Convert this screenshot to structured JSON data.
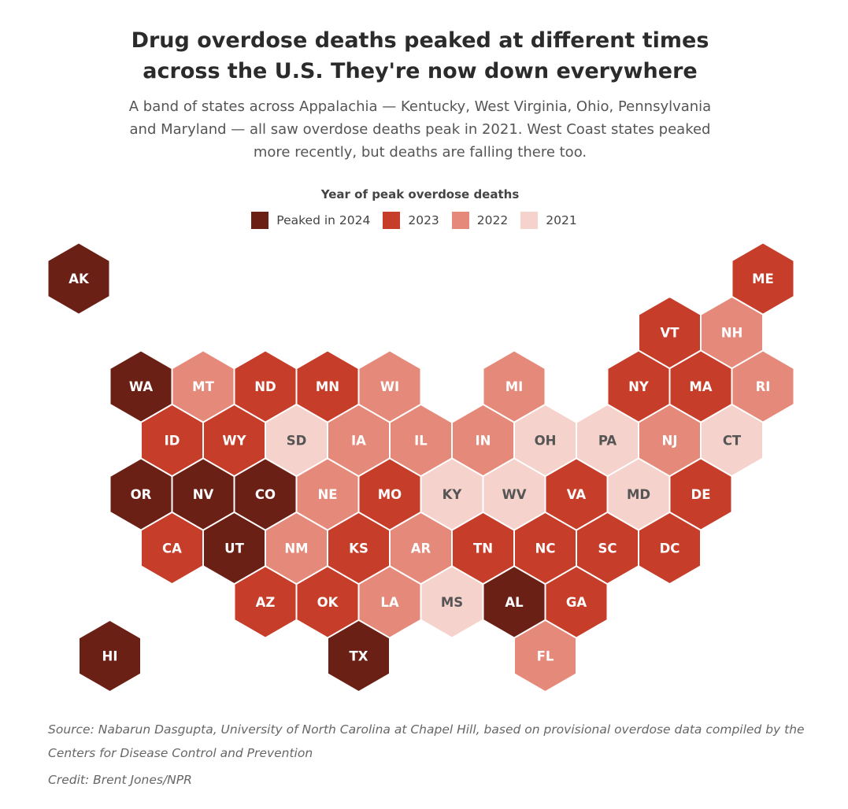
{
  "title_line1": "Drug overdose deaths peaked at different times",
  "title_line2": "across the U.S. They're now down everywhere",
  "subtitle": "A band of states across Appalachia — Kentucky, West Virginia, Ohio, Pennsylvania and Maryland — all saw overdose deaths peak in 2021. West Coast states peaked more recently, but deaths are falling there too.",
  "legend": {
    "title": "Year of peak overdose deaths",
    "items": [
      {
        "label": "Peaked in 2024",
        "year": 2024,
        "color": "#6b2016"
      },
      {
        "label": "2023",
        "year": 2023,
        "color": "#c63d2a"
      },
      {
        "label": "2022",
        "year": 2022,
        "color": "#e5897a"
      },
      {
        "label": "2021",
        "year": 2021,
        "color": "#f6d2cc"
      }
    ]
  },
  "chart_data": {
    "type": "hex-tile-map",
    "value_name": "Year of peak overdose deaths",
    "states": [
      {
        "abbr": "AK",
        "peak_year": 2024,
        "row": 0,
        "col": 0
      },
      {
        "abbr": "ME",
        "peak_year": 2023,
        "row": 0,
        "col": 11
      },
      {
        "abbr": "VT",
        "peak_year": 2023,
        "row": 1,
        "col": 9.5
      },
      {
        "abbr": "NH",
        "peak_year": 2022,
        "row": 1,
        "col": 10.5
      },
      {
        "abbr": "WA",
        "peak_year": 2024,
        "row": 2,
        "col": 1
      },
      {
        "abbr": "MT",
        "peak_year": 2022,
        "row": 2,
        "col": 2
      },
      {
        "abbr": "ND",
        "peak_year": 2023,
        "row": 2,
        "col": 3
      },
      {
        "abbr": "MN",
        "peak_year": 2023,
        "row": 2,
        "col": 4
      },
      {
        "abbr": "WI",
        "peak_year": 2022,
        "row": 2,
        "col": 5
      },
      {
        "abbr": "MI",
        "peak_year": 2022,
        "row": 2,
        "col": 7
      },
      {
        "abbr": "NY",
        "peak_year": 2023,
        "row": 2,
        "col": 9
      },
      {
        "abbr": "MA",
        "peak_year": 2023,
        "row": 2,
        "col": 10
      },
      {
        "abbr": "RI",
        "peak_year": 2022,
        "row": 2,
        "col": 11
      },
      {
        "abbr": "ID",
        "peak_year": 2023,
        "row": 3,
        "col": 1.5
      },
      {
        "abbr": "WY",
        "peak_year": 2023,
        "row": 3,
        "col": 2.5
      },
      {
        "abbr": "SD",
        "peak_year": 2021,
        "row": 3,
        "col": 3.5
      },
      {
        "abbr": "IA",
        "peak_year": 2022,
        "row": 3,
        "col": 4.5
      },
      {
        "abbr": "IL",
        "peak_year": 2022,
        "row": 3,
        "col": 5.5
      },
      {
        "abbr": "IN",
        "peak_year": 2022,
        "row": 3,
        "col": 6.5
      },
      {
        "abbr": "OH",
        "peak_year": 2021,
        "row": 3,
        "col": 7.5
      },
      {
        "abbr": "PA",
        "peak_year": 2021,
        "row": 3,
        "col": 8.5
      },
      {
        "abbr": "NJ",
        "peak_year": 2022,
        "row": 3,
        "col": 9.5
      },
      {
        "abbr": "CT",
        "peak_year": 2021,
        "row": 3,
        "col": 10.5
      },
      {
        "abbr": "OR",
        "peak_year": 2024,
        "row": 4,
        "col": 1
      },
      {
        "abbr": "NV",
        "peak_year": 2024,
        "row": 4,
        "col": 2
      },
      {
        "abbr": "CO",
        "peak_year": 2024,
        "row": 4,
        "col": 3
      },
      {
        "abbr": "NE",
        "peak_year": 2022,
        "row": 4,
        "col": 4
      },
      {
        "abbr": "MO",
        "peak_year": 2023,
        "row": 4,
        "col": 5
      },
      {
        "abbr": "KY",
        "peak_year": 2021,
        "row": 4,
        "col": 6
      },
      {
        "abbr": "WV",
        "peak_year": 2021,
        "row": 4,
        "col": 7
      },
      {
        "abbr": "VA",
        "peak_year": 2023,
        "row": 4,
        "col": 8
      },
      {
        "abbr": "MD",
        "peak_year": 2021,
        "row": 4,
        "col": 9
      },
      {
        "abbr": "DE",
        "peak_year": 2023,
        "row": 4,
        "col": 10
      },
      {
        "abbr": "CA",
        "peak_year": 2023,
        "row": 5,
        "col": 1.5
      },
      {
        "abbr": "UT",
        "peak_year": 2024,
        "row": 5,
        "col": 2.5
      },
      {
        "abbr": "NM",
        "peak_year": 2022,
        "row": 5,
        "col": 3.5
      },
      {
        "abbr": "KS",
        "peak_year": 2023,
        "row": 5,
        "col": 4.5
      },
      {
        "abbr": "AR",
        "peak_year": 2022,
        "row": 5,
        "col": 5.5
      },
      {
        "abbr": "TN",
        "peak_year": 2023,
        "row": 5,
        "col": 6.5
      },
      {
        "abbr": "NC",
        "peak_year": 2023,
        "row": 5,
        "col": 7.5
      },
      {
        "abbr": "SC",
        "peak_year": 2023,
        "row": 5,
        "col": 8.5
      },
      {
        "abbr": "DC",
        "peak_year": 2023,
        "row": 5,
        "col": 9.5
      },
      {
        "abbr": "AZ",
        "peak_year": 2023,
        "row": 6,
        "col": 3
      },
      {
        "abbr": "OK",
        "peak_year": 2023,
        "row": 6,
        "col": 4
      },
      {
        "abbr": "LA",
        "peak_year": 2022,
        "row": 6,
        "col": 5
      },
      {
        "abbr": "MS",
        "peak_year": 2021,
        "row": 6,
        "col": 6
      },
      {
        "abbr": "AL",
        "peak_year": 2024,
        "row": 6,
        "col": 7
      },
      {
        "abbr": "GA",
        "peak_year": 2023,
        "row": 6,
        "col": 8
      },
      {
        "abbr": "HI",
        "peak_year": 2024,
        "row": 7,
        "col": 0.5
      },
      {
        "abbr": "TX",
        "peak_year": 2024,
        "row": 7,
        "col": 4.5
      },
      {
        "abbr": "FL",
        "peak_year": 2022,
        "row": 7,
        "col": 7.5
      }
    ]
  },
  "source": "Source: Nabarun Dasgupta, University of North Carolina at Chapel Hill, based on provisional overdose data compiled by the Centers for Disease Control and Prevention",
  "credit": "Credit: Brent Jones/NPR"
}
